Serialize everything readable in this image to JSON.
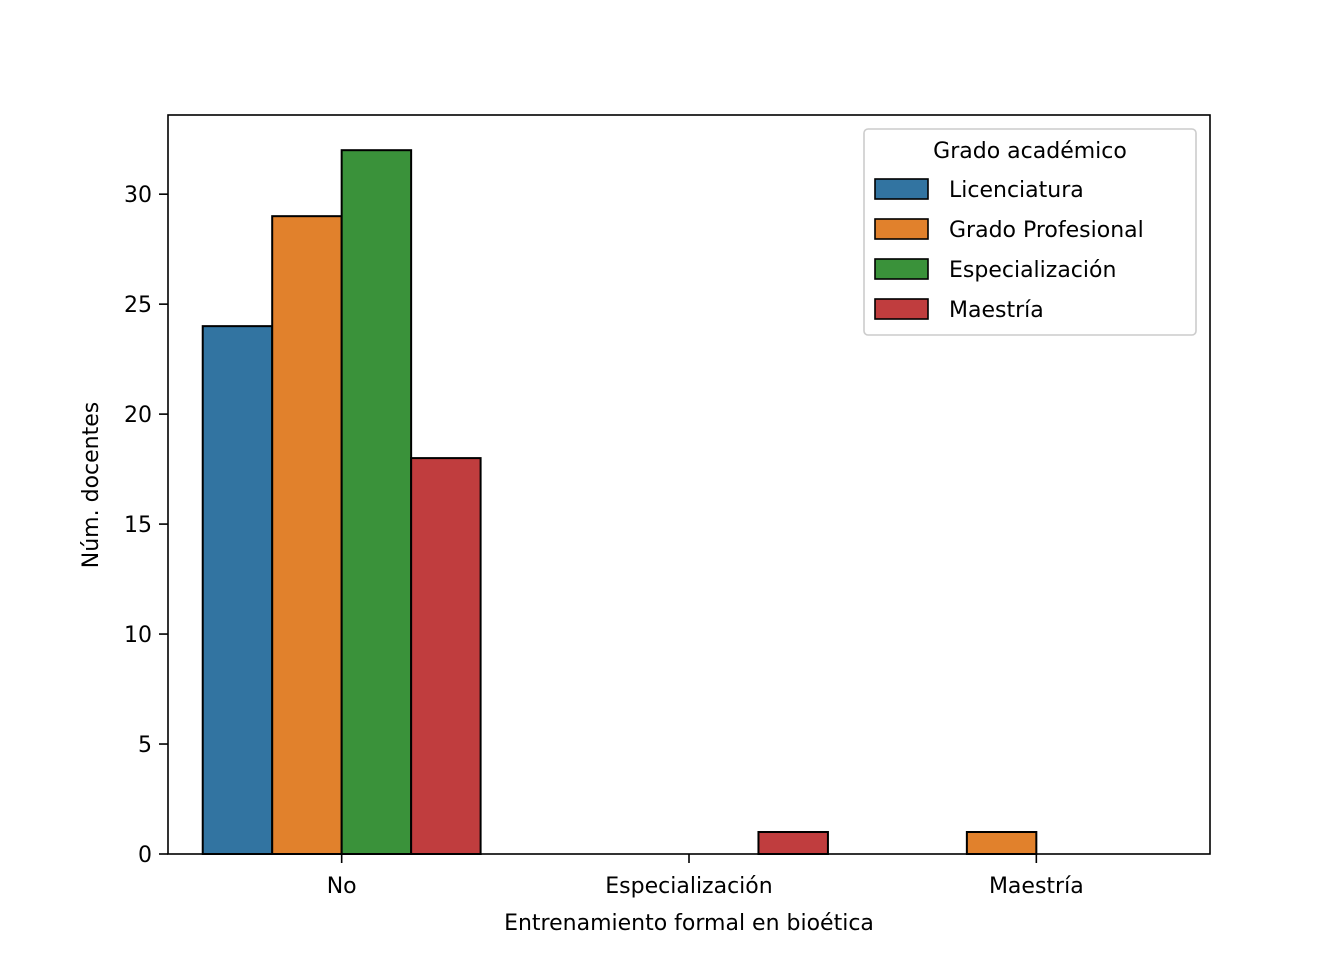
{
  "chart_data": {
    "type": "bar",
    "xlabel": "Entrenamiento formal en bioética",
    "ylabel": "Núm. docentes",
    "categories": [
      "No",
      "Especialización",
      "Maestría"
    ],
    "series": [
      {
        "name": "Licenciatura",
        "color": "#3274a1",
        "values": [
          24,
          0,
          0
        ]
      },
      {
        "name": "Grado Profesional",
        "color": "#e1812c",
        "values": [
          29,
          0,
          1
        ]
      },
      {
        "name": "Especialización",
        "color": "#3a923a",
        "values": [
          32,
          0,
          0
        ]
      },
      {
        "name": "Maestría",
        "color": "#c03d3e",
        "values": [
          18,
          1,
          0
        ]
      }
    ],
    "ylim": [
      0,
      33.6
    ],
    "yticks": [
      0,
      5,
      10,
      15,
      20,
      25,
      30
    ],
    "legend": {
      "title": "Grado académico",
      "placement": "top-right"
    },
    "grid": false
  }
}
